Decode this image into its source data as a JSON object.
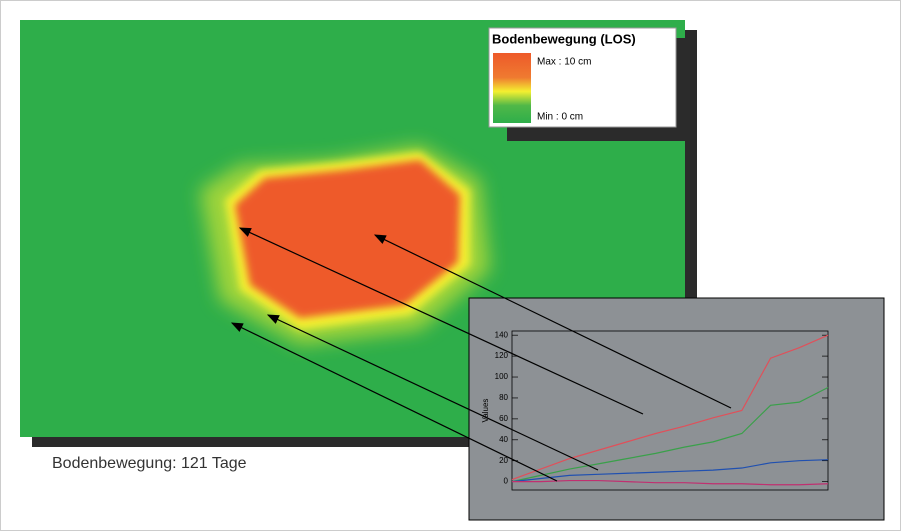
{
  "legend": {
    "title": "Bodenbewegung (LOS)",
    "max": "Max : 10 cm",
    "min": "Min : 0 cm"
  },
  "caption": "Bodenbewegung: 121 Tage",
  "chart_data": {
    "type": "line",
    "y_label": "Values",
    "categories": [
      null,
      null,
      null,
      null,
      null,
      null,
      null,
      null,
      null,
      null,
      null,
      null
    ],
    "series": [
      {
        "color": "#e0505a",
        "values": [
          2,
          12,
          22,
          30,
          38,
          46,
          53,
          61,
          68,
          118,
          128,
          140
        ]
      },
      {
        "color": "#3aa04a",
        "values": [
          0,
          6,
          12,
          17,
          22,
          27,
          33,
          38,
          46,
          73,
          76,
          90
        ]
      },
      {
        "color": "#2050b0",
        "values": [
          0,
          3,
          6,
          7,
          8,
          9,
          10,
          11,
          13,
          18,
          20,
          21
        ]
      },
      {
        "color": "#c03070",
        "values": [
          0,
          0,
          1,
          1,
          0,
          -1,
          -1,
          -2,
          -2,
          -3,
          -3,
          -2
        ]
      }
    ],
    "ylim": [
      -8,
      144
    ],
    "yticks": [
      0,
      20,
      40,
      60,
      80,
      100,
      120,
      140
    ]
  }
}
